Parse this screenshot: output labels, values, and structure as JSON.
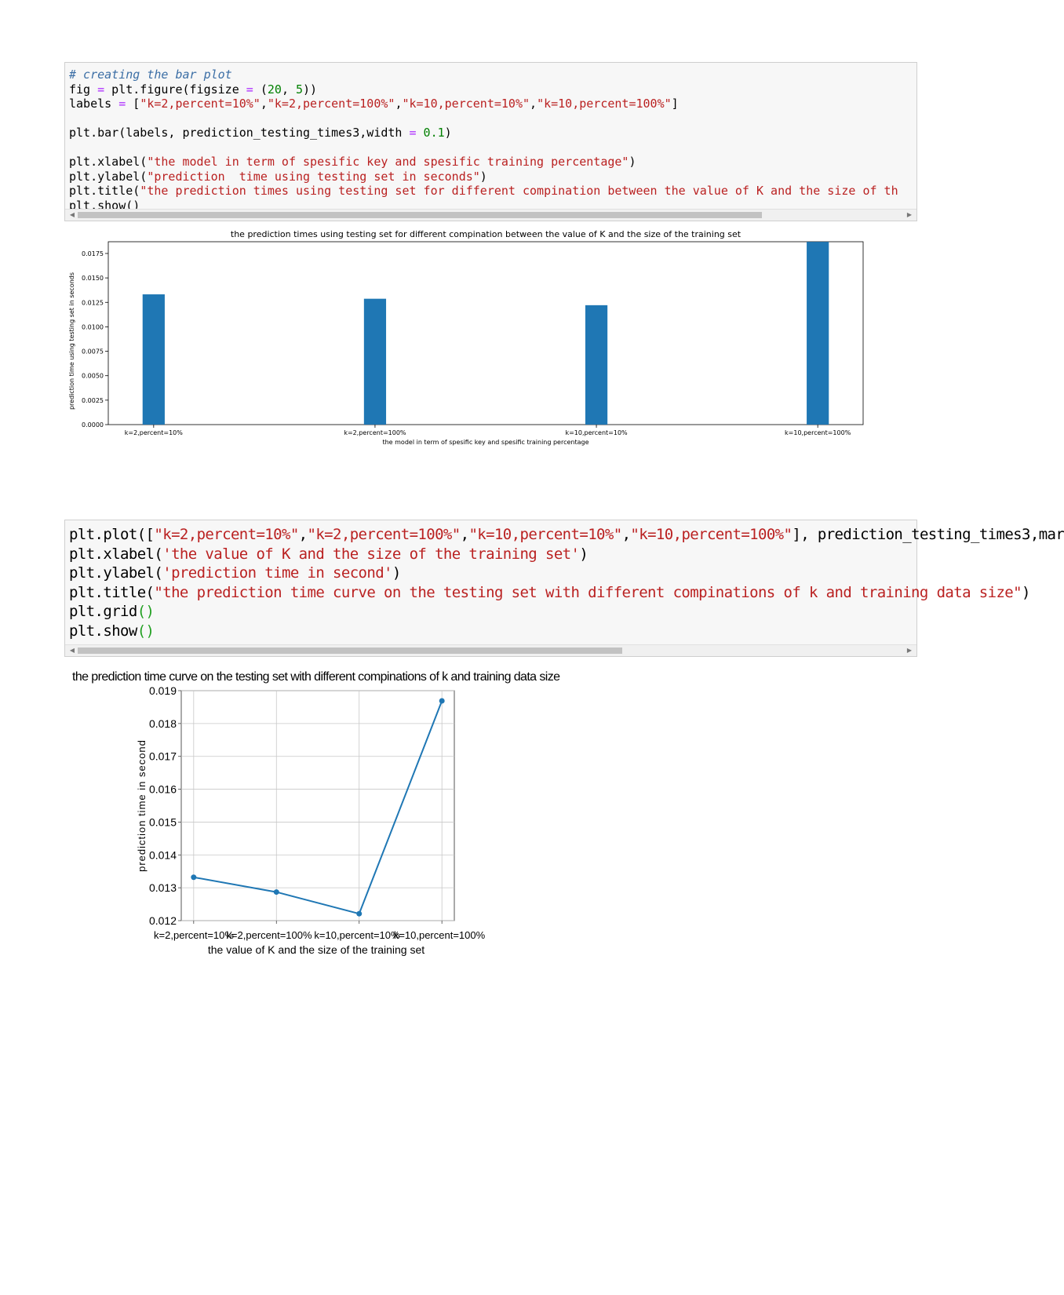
{
  "cell1": {
    "lines": [
      {
        "segments": [
          {
            "t": "# creating the bar plot",
            "c": "cm"
          }
        ]
      },
      {
        "segments": [
          {
            "t": "fig ",
            "c": ""
          },
          {
            "t": "=",
            "c": "op"
          },
          {
            "t": " plt.figure(figsize ",
            "c": ""
          },
          {
            "t": "=",
            "c": "op"
          },
          {
            "t": " (",
            "c": ""
          },
          {
            "t": "20",
            "c": "nm"
          },
          {
            "t": ", ",
            "c": ""
          },
          {
            "t": "5",
            "c": "nm"
          },
          {
            "t": "))",
            "c": ""
          }
        ]
      },
      {
        "segments": [
          {
            "t": "labels ",
            "c": ""
          },
          {
            "t": "=",
            "c": "op"
          },
          {
            "t": " [",
            "c": ""
          },
          {
            "t": "\"k=2,percent=10%\"",
            "c": "st"
          },
          {
            "t": ",",
            "c": ""
          },
          {
            "t": "\"k=2,percent=100%\"",
            "c": "st"
          },
          {
            "t": ",",
            "c": ""
          },
          {
            "t": "\"k=10,percent=10%\"",
            "c": "st"
          },
          {
            "t": ",",
            "c": ""
          },
          {
            "t": "\"k=10,percent=100%\"",
            "c": "st"
          },
          {
            "t": "]",
            "c": ""
          }
        ]
      },
      {
        "blank": true
      },
      {
        "segments": [
          {
            "t": "plt.bar(labels, prediction_testing_times3,width ",
            "c": ""
          },
          {
            "t": "=",
            "c": "op"
          },
          {
            "t": " ",
            "c": ""
          },
          {
            "t": "0.1",
            "c": "nm"
          },
          {
            "t": ")",
            "c": ""
          }
        ]
      },
      {
        "blank": true
      },
      {
        "segments": [
          {
            "t": "plt.xlabel(",
            "c": ""
          },
          {
            "t": "\"the model in term of spesific key and spesific training percentage\"",
            "c": "st"
          },
          {
            "t": ")",
            "c": ""
          }
        ]
      },
      {
        "segments": [
          {
            "t": "plt.ylabel(",
            "c": ""
          },
          {
            "t": "\"prediction  time using testing set in seconds\"",
            "c": "st"
          },
          {
            "t": ")",
            "c": ""
          }
        ]
      },
      {
        "segments": [
          {
            "t": "plt.title(",
            "c": ""
          },
          {
            "t": "\"the prediction times using testing set for different compination between the value of K and the size of th",
            "c": "st"
          }
        ]
      },
      {
        "segments": [
          {
            "t": "plt.show()",
            "c": ""
          }
        ]
      }
    ]
  },
  "cell2": {
    "lines": [
      {
        "segments": [
          {
            "t": "plt.plot([",
            "c": ""
          },
          {
            "t": "\"k=2,percent=10%\"",
            "c": "st"
          },
          {
            "t": ",",
            "c": ""
          },
          {
            "t": "\"k=2,percent=100%\"",
            "c": "st"
          },
          {
            "t": ",",
            "c": ""
          },
          {
            "t": "\"k=10,percent=10%\"",
            "c": "st"
          },
          {
            "t": ",",
            "c": ""
          },
          {
            "t": "\"k=10,percent=100%\"",
            "c": "st"
          },
          {
            "t": "], prediction_testing_times3,mar",
            "c": ""
          }
        ]
      },
      {
        "segments": [
          {
            "t": "plt.xlabel(",
            "c": ""
          },
          {
            "t": "'the value of K and the size of the training set'",
            "c": "st"
          },
          {
            "t": ")",
            "c": ""
          }
        ]
      },
      {
        "segments": [
          {
            "t": "plt.ylabel(",
            "c": ""
          },
          {
            "t": "'prediction time in second'",
            "c": "st"
          },
          {
            "t": ")",
            "c": ""
          }
        ]
      },
      {
        "segments": [
          {
            "t": "plt.title(",
            "c": ""
          },
          {
            "t": "\"the prediction time curve on the testing set with different compinations of k and training data size\"",
            "c": "st"
          },
          {
            "t": ")",
            "c": ""
          }
        ]
      },
      {
        "segments": [
          {
            "t": "plt.grid",
            "c": ""
          },
          {
            "t": "()",
            "c": "gr"
          }
        ]
      },
      {
        "segments": [
          {
            "t": "plt.show",
            "c": ""
          },
          {
            "t": "()",
            "c": "gr"
          }
        ]
      }
    ]
  },
  "chart_data": [
    {
      "type": "bar",
      "title": "the prediction times using testing set for different compination between the value of K and the size of the training set",
      "xlabel": "the model in term of spesific key and spesific training percentage",
      "ylabel": "prediction  time using testing set in seconds",
      "categories": [
        "k=2,percent=10%",
        "k=2,percent=100%",
        "k=10,percent=10%",
        "k=10,percent=100%"
      ],
      "values": [
        0.01332,
        0.01287,
        0.01221,
        0.01869
      ],
      "yticks": [
        "0.0000",
        "0.0025",
        "0.0050",
        "0.0075",
        "0.0100",
        "0.0125",
        "0.0150",
        "0.0175"
      ],
      "ylim": [
        0,
        0.0187
      ],
      "color": "#1f77b4",
      "grid": false
    },
    {
      "type": "line",
      "title": "the prediction time curve on the testing set with different compinations of k and training data size",
      "xlabel": "the value of K and the size of the training set",
      "ylabel": "prediction time in second",
      "categories": [
        "k=2,percent=10%",
        "k=2,percent=100%",
        "k=10,percent=10%",
        "k=10,percent=100%"
      ],
      "values": [
        0.01332,
        0.01287,
        0.01221,
        0.01869
      ],
      "yticks": [
        "0.012",
        "0.013",
        "0.014",
        "0.015",
        "0.016",
        "0.017",
        "0.018",
        "0.019"
      ],
      "ylim": [
        0.012,
        0.019
      ],
      "color": "#1f77b4",
      "marker": "o",
      "grid": true
    }
  ]
}
